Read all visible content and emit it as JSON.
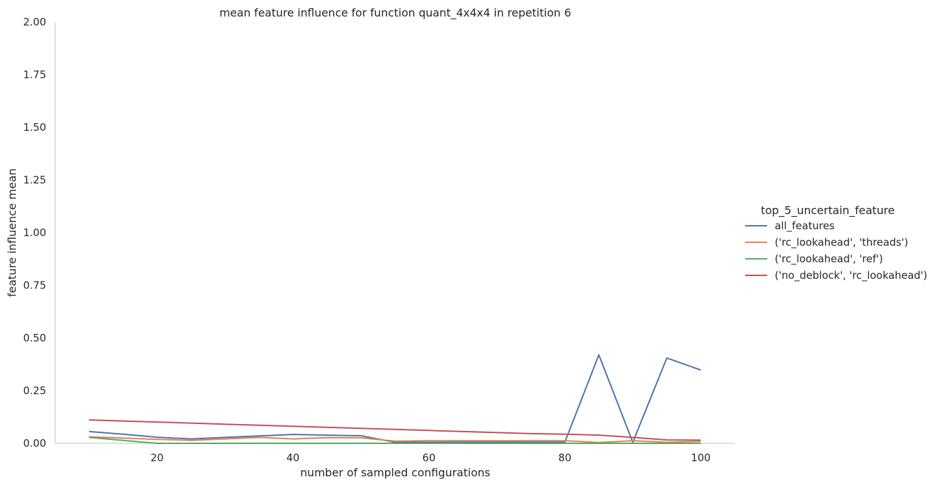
{
  "chart_data": {
    "type": "line",
    "title": "mean feature influence for function quant_4x4x4 in repetition 6",
    "xlabel": "number of sampled configurations",
    "ylabel": "feature influence mean",
    "xlim": [
      5,
      105
    ],
    "ylim": [
      0,
      2
    ],
    "xticks": [
      20,
      40,
      60,
      80,
      100
    ],
    "yticks": [
      0.0,
      0.25,
      0.5,
      0.75,
      1.0,
      1.25,
      1.5,
      1.75,
      2.0
    ],
    "ytick_labels": [
      "0.00",
      "0.25",
      "0.50",
      "0.75",
      "1.00",
      "1.25",
      "1.50",
      "1.75",
      "2.00"
    ],
    "grid": false,
    "legend_placement": "right",
    "legend_title": "top_5_uncertain_feature",
    "x": [
      10,
      15,
      20,
      25,
      30,
      35,
      40,
      45,
      50,
      55,
      60,
      65,
      70,
      75,
      80,
      85,
      90,
      95,
      100
    ],
    "series": [
      {
        "name": "all_features",
        "color": "#4c72b0",
        "values": [
          0.056,
          0.043,
          0.029,
          0.021,
          0.028,
          0.035,
          0.042,
          0.039,
          0.036,
          0.005,
          0.005,
          0.006,
          0.006,
          0.006,
          0.006,
          0.42,
          0.005,
          0.405,
          0.348
        ]
      },
      {
        "name": "('rc_lookahead', 'threads')",
        "color": "#dd8452",
        "values": [
          0.031,
          0.025,
          0.019,
          0.014,
          0.021,
          0.028,
          0.021,
          0.027,
          0.026,
          0.01,
          0.012,
          0.012,
          0.012,
          0.012,
          0.012,
          0.004,
          0.012,
          0.005,
          0.009
        ]
      },
      {
        "name": "('rc_lookahead', 'ref')",
        "color": "#55a868",
        "values": [
          0.028,
          0.014,
          0.0,
          0.0,
          0.0,
          0.0,
          0.0,
          0.0,
          0.0,
          0.0,
          0.0,
          0.0,
          0.0,
          0.0,
          0.0,
          0.0,
          0.0,
          0.0,
          0.0
        ]
      },
      {
        "name": "('no_deblock', 'rc_lookahead')",
        "color": "#c44e52",
        "values": [
          0.111,
          0.106,
          0.101,
          0.096,
          0.091,
          0.086,
          0.081,
          0.076,
          0.071,
          0.066,
          0.061,
          0.056,
          0.051,
          0.046,
          0.043,
          0.039,
          0.028,
          0.016,
          0.015
        ]
      }
    ]
  }
}
